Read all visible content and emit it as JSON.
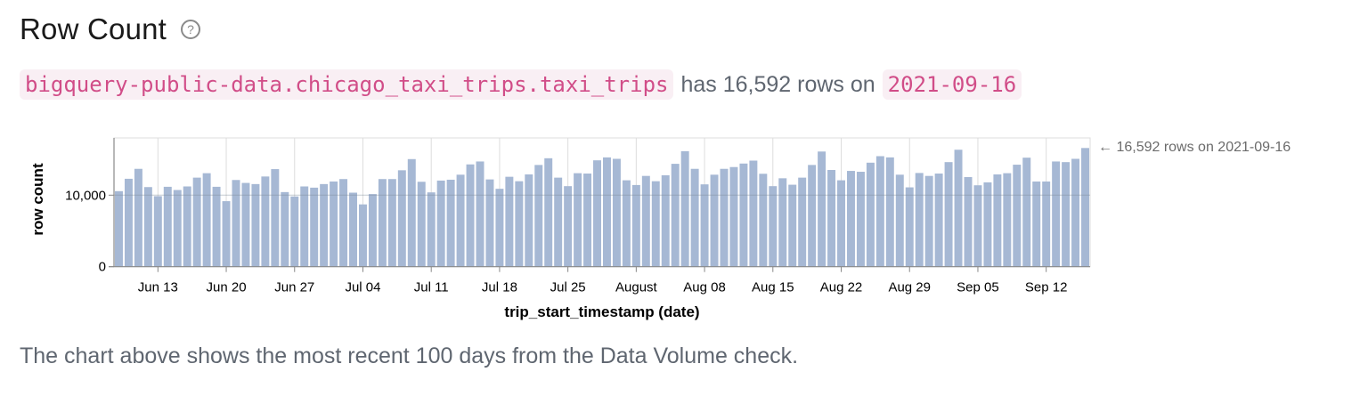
{
  "header": {
    "title": "Row Count",
    "help_icon": "question-circle-icon"
  },
  "summary": {
    "table_name": "bigquery-public-data.chicago_taxi_trips.taxi_trips",
    "text_mid": "has 16,592 rows on",
    "date": "2021-09-16"
  },
  "footer": {
    "text": "The chart above shows the most recent 100 days from the Data Volume check."
  },
  "colors": {
    "bar": "#a6b8d4",
    "code_text": "#d14d88",
    "code_bg": "#f9eff4",
    "grid": "#dddddd",
    "axis": "#888888"
  },
  "chart_data": {
    "type": "bar",
    "title": "",
    "xlabel": "trip_start_timestamp (date)",
    "ylabel": "row count",
    "ylim": [
      0,
      18000
    ],
    "yticks": [
      0,
      10000
    ],
    "ytick_labels": [
      "0",
      "10,000"
    ],
    "grid": true,
    "start_date": "2021-06-09",
    "end_date": "2021-09-16",
    "x_tick_labels": [
      {
        "label": "Jun 13",
        "index": 4
      },
      {
        "label": "Jun 20",
        "index": 11
      },
      {
        "label": "Jun 27",
        "index": 18
      },
      {
        "label": "Jul 04",
        "index": 25
      },
      {
        "label": "Jul 11",
        "index": 32
      },
      {
        "label": "Jul 18",
        "index": 39
      },
      {
        "label": "Jul 25",
        "index": 46
      },
      {
        "label": "August",
        "index": 53
      },
      {
        "label": "Aug 08",
        "index": 60
      },
      {
        "label": "Aug 15",
        "index": 67
      },
      {
        "label": "Aug 22",
        "index": 74
      },
      {
        "label": "Aug 29",
        "index": 81
      },
      {
        "label": "Sep 05",
        "index": 88
      },
      {
        "label": "Sep 12",
        "index": 95
      }
    ],
    "annotation": "← 16,592 rows on 2021-09-16",
    "values": [
      10560,
      12290,
      13680,
      11130,
      9860,
      11170,
      10720,
      11220,
      12450,
      13070,
      11170,
      9160,
      12120,
      11710,
      11550,
      12610,
      13640,
      10430,
      9820,
      11220,
      11050,
      11550,
      11910,
      12250,
      10350,
      8710,
      10150,
      12250,
      12250,
      13480,
      15040,
      11870,
      10390,
      12040,
      12160,
      12860,
      14300,
      14710,
      12200,
      10890,
      12570,
      11950,
      12900,
      14220,
      15160,
      12450,
      11260,
      13070,
      13020,
      14870,
      15280,
      15080,
      12080,
      11420,
      12690,
      11950,
      12780,
      14380,
      16150,
      13680,
      11510,
      12860,
      13680,
      13930,
      14420,
      14830,
      12990,
      11260,
      12360,
      11460,
      12450,
      14220,
      16100,
      13520,
      12080,
      13390,
      13270,
      14540,
      15450,
      15280,
      12860,
      11090,
      13100,
      12690,
      13020,
      14620,
      16350,
      12530,
      11380,
      11790,
      12900,
      13070,
      14260,
      15240,
      11910,
      11910,
      14710,
      14620,
      15080,
      16592
    ]
  }
}
